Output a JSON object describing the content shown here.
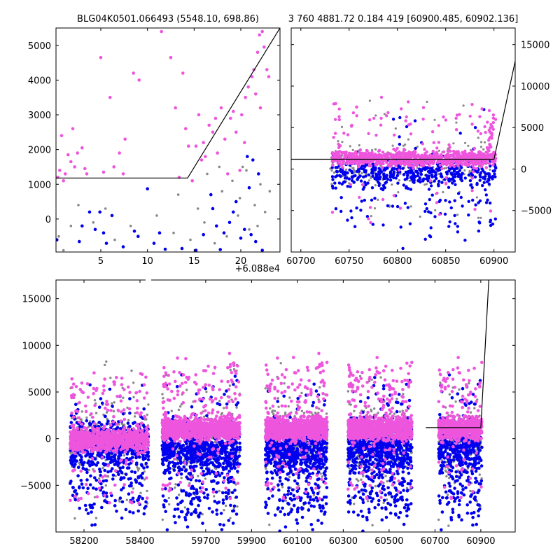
{
  "titles": {
    "left": "BLG04K0501.066493 (5548.10, 698.86)",
    "right": "3 760 4881.72 0.184 419 [60900.485, 60902.136]"
  },
  "colors": {
    "magenta": "#ee55dd",
    "blue": "#0000ee",
    "gray": "#888888",
    "model": "#000000"
  },
  "chart_data": [
    {
      "id": "zoom",
      "type": "scatter",
      "title": "BLG04K0501.066493 (5548.10, 698.86)",
      "xlim": [
        0.2,
        24.2
      ],
      "ylim": [
        -950,
        5500
      ],
      "xticks": [
        5,
        10,
        15,
        20
      ],
      "xtick_labels": [
        "5",
        "10",
        "15",
        "20"
      ],
      "yticks": [
        0,
        1000,
        2000,
        3000,
        4000,
        5000
      ],
      "ytick_labels": [
        "0",
        "1000",
        "2000",
        "3000",
        "4000",
        "5000"
      ],
      "x_offset_label": "+6.088e4",
      "model": {
        "x": [
          0.2,
          14.3,
          24.2
        ],
        "y": [
          1180,
          1180,
          5500
        ]
      },
      "series": [
        {
          "name": "magenta",
          "color": "#ee55dd",
          "points": [
            [
              0.4,
              1200
            ],
            [
              0.6,
              1400
            ],
            [
              0.8,
              2400
            ],
            [
              1,
              1100
            ],
            [
              1.2,
              1300
            ],
            [
              1.5,
              1850
            ],
            [
              1.8,
              1650
            ],
            [
              2,
              2600
            ],
            [
              2.2,
              1500
            ],
            [
              2.5,
              1900
            ],
            [
              3,
              2050
            ],
            [
              3.3,
              1450
            ],
            [
              3.5,
              1300
            ],
            [
              5,
              4650
            ],
            [
              5.3,
              1350
            ],
            [
              6,
              3500
            ],
            [
              6.4,
              1500
            ],
            [
              7,
              1900
            ],
            [
              7.4,
              1300
            ],
            [
              7.6,
              2300
            ],
            [
              8.5,
              4200
            ],
            [
              9.1,
              4000
            ],
            [
              11.5,
              5400
            ],
            [
              12.5,
              4650
            ],
            [
              13,
              3200
            ],
            [
              13.8,
              4200
            ],
            [
              14.1,
              2600
            ],
            [
              14.4,
              2100
            ],
            [
              16,
              2200
            ],
            [
              16.2,
              1800
            ],
            [
              17,
              2500
            ],
            [
              17.3,
              2900
            ],
            [
              17.9,
              3200
            ],
            [
              18.3,
              2300
            ],
            [
              18.6,
              1300
            ],
            [
              19.2,
              3100
            ],
            [
              19.5,
              2500
            ],
            [
              20.1,
              3000
            ],
            [
              20.5,
              3500
            ],
            [
              20.8,
              3800
            ],
            [
              21.2,
              4100
            ],
            [
              21.4,
              4300
            ],
            [
              21.8,
              4800
            ],
            [
              22,
              5300
            ],
            [
              22.3,
              5400
            ],
            [
              22.5,
              4950
            ],
            [
              22.8,
              4300
            ],
            [
              23,
              4100
            ],
            [
              21.6,
              3600
            ],
            [
              22.1,
              3200
            ],
            [
              18.9,
              2900
            ],
            [
              16.6,
              2700
            ],
            [
              15.2,
              2100
            ],
            [
              15.5,
              3000
            ],
            [
              15.8,
              1700
            ],
            [
              14.8,
              1100
            ],
            [
              17.5,
              1900
            ],
            [
              13.4,
              1200
            ],
            [
              20.4,
              2200
            ],
            [
              19.9,
              1400
            ]
          ]
        },
        {
          "name": "blue",
          "color": "#0000ee",
          "points": [
            [
              0.3,
              -600
            ],
            [
              2.7,
              -650
            ],
            [
              3,
              -200
            ],
            [
              3.8,
              200
            ],
            [
              4.4,
              -300
            ],
            [
              4.9,
              200
            ],
            [
              5.3,
              -400
            ],
            [
              5.6,
              -700
            ],
            [
              6.2,
              100
            ],
            [
              7.4,
              -800
            ],
            [
              8.6,
              -350
            ],
            [
              9,
              -500
            ],
            [
              10,
              870
            ],
            [
              10.7,
              -700
            ],
            [
              11.3,
              -400
            ],
            [
              11.9,
              -870
            ],
            [
              13.7,
              -850
            ],
            [
              15.2,
              -900
            ],
            [
              16,
              -450
            ],
            [
              16.8,
              700
            ],
            [
              17.4,
              -200
            ],
            [
              17.8,
              -880
            ],
            [
              18.2,
              -400
            ],
            [
              18.8,
              -100
            ],
            [
              19.5,
              500
            ],
            [
              20,
              -550
            ],
            [
              20.4,
              -300
            ],
            [
              20.7,
              1800
            ],
            [
              21.3,
              1700
            ],
            [
              21.6,
              -650
            ],
            [
              21.9,
              1300
            ],
            [
              22.3,
              -900
            ],
            [
              21.1,
              -450
            ],
            [
              19.2,
              200
            ],
            [
              17,
              300
            ],
            [
              20.9,
              900
            ]
          ]
        },
        {
          "name": "gray",
          "color": "#888888",
          "points": [
            [
              0.5,
              -500
            ],
            [
              1,
              -900
            ],
            [
              1.8,
              -200
            ],
            [
              2.6,
              400
            ],
            [
              4.2,
              -100
            ],
            [
              5.5,
              300
            ],
            [
              6.5,
              -600
            ],
            [
              8.2,
              -200
            ],
            [
              11,
              100
            ],
            [
              12.8,
              -400
            ],
            [
              13.3,
              700
            ],
            [
              14.6,
              -600
            ],
            [
              15.4,
              300
            ],
            [
              16.1,
              -100
            ],
            [
              16.4,
              1300
            ],
            [
              17.2,
              -700
            ],
            [
              18,
              800
            ],
            [
              18.5,
              -500
            ],
            [
              19.1,
              1100
            ],
            [
              19.7,
              100
            ],
            [
              20.2,
              1500
            ],
            [
              20.9,
              -300
            ],
            [
              21.5,
              400
            ],
            [
              22.1,
              1000
            ],
            [
              22.6,
              200
            ],
            [
              23.1,
              800
            ],
            [
              17.7,
              1500
            ],
            [
              19.9,
              600
            ],
            [
              21.8,
              -200
            ],
            [
              20.6,
              1400
            ]
          ]
        }
      ]
    },
    {
      "id": "season",
      "type": "scatter",
      "title": "3 760 4881.72 0.184 419 [60900.485, 60902.136]",
      "xlim": [
        60690,
        60922
      ],
      "ylim": [
        -10000,
        17000
      ],
      "xticks": [
        60700,
        60750,
        60800,
        60850,
        60900
      ],
      "xtick_labels": [
        "60700",
        "60750",
        "60800",
        "60850",
        "60900"
      ],
      "yticks": [
        -5000,
        0,
        5000,
        10000,
        15000
      ],
      "ytick_labels": [
        "−5000",
        "0",
        "5000",
        "10000",
        "15000"
      ],
      "yaxis_side": "right",
      "model": {
        "x": [
          60690,
          60900,
          60922
        ],
        "y": [
          1180,
          1180,
          13000
        ]
      }
    },
    {
      "id": "full",
      "type": "scatter",
      "xlim": [
        58100,
        61050
      ],
      "ylim": [
        -10000,
        17000
      ],
      "xticks": [
        58200,
        58400,
        59700,
        59900,
        60100,
        60300,
        60500,
        60700,
        60900
      ],
      "xtick_labels": [
        "58200",
        "58400",
        "59700",
        "59900",
        "60100",
        "60300",
        "60500",
        "60700",
        "60900"
      ],
      "yticks": [
        -5000,
        0,
        5000,
        10000,
        15000
      ],
      "ytick_labels": [
        "−5000",
        "0",
        "5000",
        "10000",
        "15000"
      ],
      "x_break_after": 58430,
      "x_resume_at": 59450,
      "seasons": [
        {
          "start": 58150,
          "end": 58430
        },
        {
          "start": 59510,
          "end": 59850
        },
        {
          "start": 59960,
          "end": 60230
        },
        {
          "start": 60320,
          "end": 60600
        },
        {
          "start": 60715,
          "end": 60905
        }
      ],
      "model": {
        "x": [
          60660,
          60900,
          60935
        ],
        "y": [
          1180,
          1180,
          17000
        ]
      }
    }
  ]
}
